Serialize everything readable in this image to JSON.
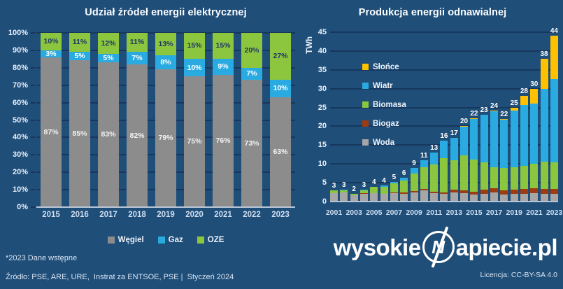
{
  "page": {
    "background": "#1F4E79",
    "grid_color": "#17375E",
    "axis_line_color": "#B9C6D6"
  },
  "chart_data": [
    {
      "type": "bar",
      "stacked": true,
      "title": "Udział źródeł energii elektrycznej",
      "categories": [
        "2015",
        "2016",
        "2017",
        "2018",
        "2019",
        "2020",
        "2021",
        "2022",
        "2023"
      ],
      "unit": "%",
      "ylim": [
        0,
        100
      ],
      "yticks": [
        "0%",
        "10%",
        "20%",
        "30%",
        "40%",
        "50%",
        "60%",
        "70%",
        "80%",
        "90%",
        "100%"
      ],
      "grid": true,
      "legend_position": "bottom",
      "series": [
        {
          "name": "Węgiel",
          "color": "#8C8C8C",
          "label_color": "#F2F2F2",
          "values": [
            87,
            85,
            83,
            82,
            79,
            75,
            76,
            73,
            63
          ]
        },
        {
          "name": "Gaz",
          "color": "#29ABE2",
          "label_color": "#FFFFFF",
          "values": [
            3,
            5,
            5,
            7,
            8,
            10,
            9,
            7,
            10
          ]
        },
        {
          "name": "OZE",
          "color": "#8CC63F",
          "label_color": "#1F3864",
          "values": [
            10,
            11,
            12,
            11,
            13,
            15,
            15,
            20,
            27
          ]
        }
      ]
    },
    {
      "type": "bar",
      "stacked": true,
      "title": "Produkcja energii odnawialnej",
      "ylabel": "TWh",
      "categories": [
        "2001",
        "2002",
        "2003",
        "2004",
        "2005",
        "2006",
        "2007",
        "2008",
        "2009",
        "2010",
        "2011",
        "2012",
        "2013",
        "2014",
        "2015",
        "2016",
        "2017",
        "2018",
        "2019",
        "2020",
        "2021",
        "2022",
        "2023"
      ],
      "x_tick_labels": [
        "2001",
        "2003",
        "2005",
        "2007",
        "2009",
        "2011",
        "2013",
        "2015",
        "2017",
        "2019",
        "2021",
        "2023"
      ],
      "ylim": [
        0,
        45
      ],
      "yticks": [
        0,
        5,
        10,
        15,
        20,
        25,
        30,
        35,
        40,
        45
      ],
      "grid": true,
      "legend_position": "top-left",
      "series": [
        {
          "name": "Woda",
          "color": "#A6A6A6",
          "values": [
            2.3,
            2.4,
            1.6,
            2.1,
            2.2,
            2.0,
            2.3,
            2.1,
            2.4,
            2.9,
            2.3,
            2.0,
            2.4,
            2.2,
            1.8,
            2.1,
            2.4,
            1.9,
            2.0,
            2.1,
            2.3,
            2.0,
            2.1
          ]
        },
        {
          "name": "Biogaz",
          "color": "#9E3B10",
          "values": [
            0.0,
            0.0,
            0.0,
            0.1,
            0.1,
            0.1,
            0.2,
            0.3,
            0.4,
            0.4,
            0.4,
            0.5,
            0.7,
            0.8,
            0.9,
            1.0,
            1.1,
            1.1,
            1.1,
            1.2,
            1.2,
            1.3,
            1.3
          ]
        },
        {
          "name": "Biomasa",
          "color": "#8CC63F",
          "values": [
            0.7,
            0.6,
            0.4,
            0.8,
            1.6,
            1.8,
            2.3,
            3.1,
            4.7,
            5.9,
            7.1,
            9.1,
            7.9,
            9.2,
            8.5,
            7.3,
            5.7,
            5.9,
            6.0,
            6.1,
            6.5,
            7.3,
            7.1
          ]
        },
        {
          "name": "Wiatr",
          "color": "#29ABE2",
          "values": [
            0.0,
            0.1,
            0.1,
            0.1,
            0.1,
            0.3,
            0.5,
            0.8,
            1.5,
            1.7,
            3.2,
            4.5,
            6.0,
            7.7,
            10.8,
            12.6,
            14.8,
            12.8,
            15.1,
            16.3,
            16.1,
            19.3,
            22.1
          ]
        },
        {
          "name": "Słońce",
          "color": "#FFC000",
          "values": [
            0,
            0,
            0,
            0,
            0,
            0,
            0,
            0,
            0,
            0,
            0,
            0,
            0,
            0.1,
            0.1,
            0.1,
            0.2,
            0.3,
            0.7,
            2.3,
            3.9,
            8.1,
            11.4
          ]
        }
      ],
      "totals": [
        3,
        3,
        2,
        3,
        4,
        4,
        5,
        6,
        9,
        11,
        13,
        16,
        17,
        20,
        22,
        23,
        24,
        22,
        25,
        28,
        30,
        38,
        44
      ]
    }
  ],
  "footnotes": {
    "note": "*2023 Dane wstępne",
    "source": "Źródło: PSE, ARE, URE,  Instrat za ENTSOE, PSE |  Styczeń 2024"
  },
  "branding": {
    "logo_prefix": "wysokie",
    "logo_letter": "N",
    "logo_suffix": "apiecie.pl",
    "license": "Licencja: CC-BY-SA 4.0"
  }
}
